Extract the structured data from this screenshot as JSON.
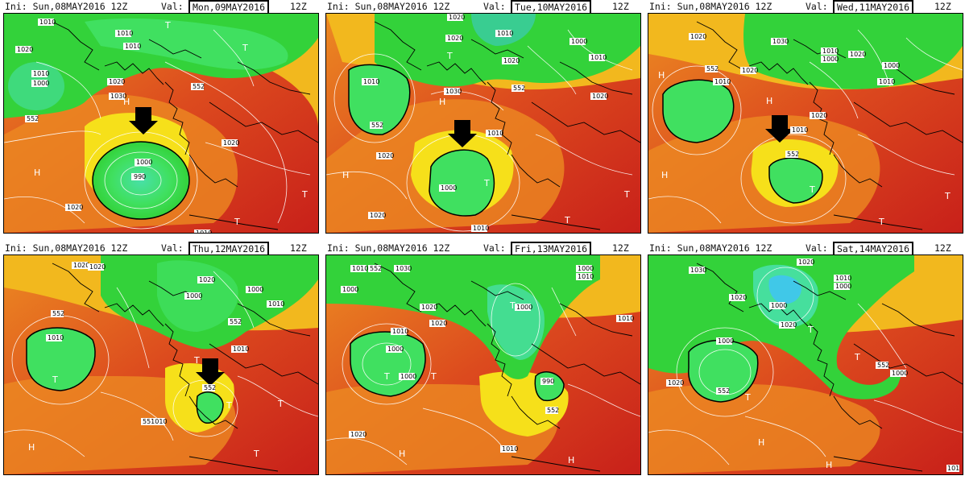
{
  "panels": [
    {
      "init": "Ini: Sun,08MAY2016 12Z",
      "val_label": "Val:",
      "valid": "Mon,09MAY2016",
      "run": "12Z",
      "contour_labels": [
        "1010",
        "1020",
        "1010",
        "1010",
        "1010",
        "1000",
        "1020",
        "1030",
        "552",
        "552",
        "1000",
        "990",
        "1020",
        "1020",
        "1010",
        "1010"
      ],
      "pressure_marks": [
        "H",
        "T",
        "T",
        "H",
        "T",
        "T"
      ]
    },
    {
      "init": "Ini: Sun,08MAY2016 12Z",
      "val_label": "Val:",
      "valid": "Tue,10MAY2016",
      "run": "12Z",
      "contour_labels": [
        "1020",
        "1020",
        "1010",
        "1000",
        "1020",
        "1010",
        "1030",
        "552",
        "1010",
        "552",
        "1020",
        "1000",
        "1020",
        "1020",
        "1010",
        "1010"
      ],
      "pressure_marks": [
        "T",
        "T",
        "H",
        "H",
        "T",
        "T"
      ]
    },
    {
      "init": "Ini: Sun,08MAY2016 12Z",
      "val_label": "Val:",
      "valid": "Wed,11MAY2016",
      "run": "12Z",
      "contour_labels": [
        "1020",
        "1030",
        "1010",
        "1000",
        "1020",
        "1010",
        "552",
        "1010",
        "1020",
        "1010",
        "552",
        "1020",
        "1020",
        "1000"
      ],
      "pressure_marks": [
        "H",
        "H",
        "T",
        "T",
        "H",
        "T"
      ]
    },
    {
      "init": "Ini: Sun,08MAY2016 12Z",
      "val_label": "Val:",
      "valid": "Thu,12MAY2016",
      "run": "12Z",
      "contour_labels": [
        "1020",
        "1020",
        "1000",
        "1000",
        "552",
        "1010",
        "1010",
        "552",
        "1010",
        "1020",
        "552",
        "551010"
      ],
      "pressure_marks": [
        "T",
        "T",
        "T",
        "H",
        "T",
        "T"
      ]
    },
    {
      "init": "Ini: Sun,08MAY2016 12Z",
      "val_label": "Val:",
      "valid": "Fri,13MAY2016",
      "run": "12Z",
      "contour_labels": [
        "1010",
        "552",
        "1030",
        "1000",
        "1000",
        "1010",
        "1020",
        "1020",
        "1010",
        "1000",
        "1000",
        "1000",
        "990",
        "552",
        "1010",
        "1020",
        "1010",
        "1010"
      ],
      "pressure_marks": [
        "T",
        "H",
        "T",
        "H",
        "T"
      ]
    },
    {
      "init": "Ini: Sun,08MAY2016 12Z",
      "val_label": "Val:",
      "valid": "Sat,14MAY2016",
      "run": "12Z",
      "contour_labels": [
        "1030",
        "1020",
        "1020",
        "1010",
        "1000",
        "1000",
        "1020",
        "1000",
        "552",
        "1000",
        "552",
        "1020",
        "101"
      ],
      "pressure_marks": [
        "T",
        "T",
        "H",
        "H",
        "T"
      ]
    }
  ],
  "colors": {
    "deep_red": "#c8201a",
    "red": "#dc4a1e",
    "orange": "#ec8a22",
    "yellow_orange": "#f2b81e",
    "yellow": "#f6e01a",
    "light_green": "#b8e640",
    "green": "#33d23a",
    "bright_green": "#40e060",
    "cyan_green": "#48e0a8",
    "cyan": "#40c8e8",
    "contour": "#ffffff",
    "coast": "#000000"
  },
  "icons": [
    "arrow-down-icon"
  ]
}
